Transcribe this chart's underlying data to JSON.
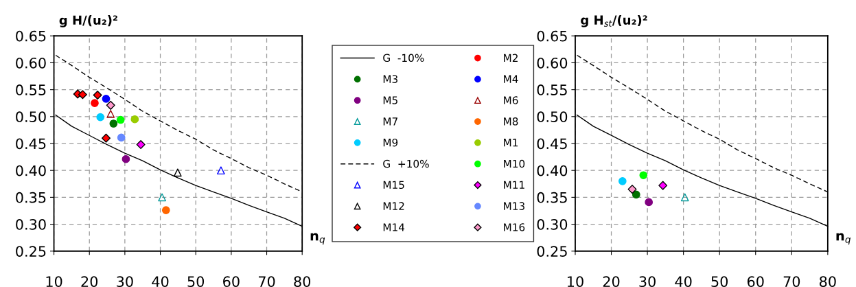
{
  "chart_data": [
    {
      "type": "scatter",
      "ylabel": "g H/(u₂)²",
      "xlabel": "n$_{q}$",
      "xlim": [
        10,
        80
      ],
      "ylim": [
        0.25,
        0.65
      ],
      "xticks": [
        10,
        20,
        30,
        40,
        50,
        60,
        70,
        80
      ],
      "yticks": [
        {
          "value": 0.25,
          "label": "0.25"
        },
        {
          "value": 0.3,
          "label": "0.30"
        },
        {
          "value": 0.35,
          "label": "0.35"
        },
        {
          "value": 0.4,
          "label": "0.40"
        },
        {
          "value": 0.45,
          "label": "0.45"
        },
        {
          "value": 0.5,
          "label": "0.50"
        },
        {
          "value": 0.55,
          "label": "0.55"
        },
        {
          "value": 0.6,
          "label": "0.60"
        },
        {
          "value": 0.65,
          "label": "0.65"
        }
      ],
      "grid": true,
      "legend": "right",
      "series": [
        {
          "name": "G  -10%",
          "type": "line",
          "line_style": "solid",
          "marker": "none",
          "color": "#000000",
          "x": [
            10.5,
            15,
            20,
            25,
            30,
            35,
            40,
            45,
            50,
            55,
            60,
            65,
            70,
            75,
            80
          ],
          "values": [
            0.503,
            0.482,
            0.465,
            0.448,
            0.432,
            0.418,
            0.401,
            0.386,
            0.372,
            0.36,
            0.348,
            0.335,
            0.323,
            0.311,
            0.296
          ]
        },
        {
          "name": "M3",
          "marker": "circle",
          "color": "#007000",
          "x": [
            26.8
          ],
          "values": [
            0.487
          ]
        },
        {
          "name": "M5",
          "marker": "circle",
          "color": "#800080",
          "x": [
            30.3
          ],
          "values": [
            0.421
          ]
        },
        {
          "name": "M7",
          "marker": "triangle",
          "color": "#009999",
          "x": [
            40.5
          ],
          "values": [
            0.35
          ]
        },
        {
          "name": "M9",
          "marker": "circle",
          "color": "#00ccff",
          "x": [
            23.1
          ],
          "values": [
            0.499
          ]
        },
        {
          "name": "G  +10%",
          "type": "line",
          "line_style": "dashed",
          "marker": "none",
          "color": "#000000",
          "x": [
            10.5,
            15,
            20,
            25,
            30,
            35,
            40,
            45,
            50,
            55,
            60,
            65,
            70,
            75,
            80
          ],
          "values": [
            0.614,
            0.595,
            0.573,
            0.553,
            0.532,
            0.51,
            0.492,
            0.474,
            0.458,
            0.438,
            0.422,
            0.405,
            0.391,
            0.375,
            0.36
          ]
        },
        {
          "name": "M15",
          "marker": "triangle",
          "color": "#0000ff",
          "x": [
            57.1
          ],
          "values": [
            0.4
          ]
        },
        {
          "name": "M12",
          "marker": "triangle",
          "color": "#000000",
          "x": [
            44.9
          ],
          "values": [
            0.396
          ]
        },
        {
          "name": "M14",
          "marker": "diamond",
          "color": "#ff0000",
          "x": [
            16.7,
            18.1,
            22.3,
            24.7
          ],
          "values": [
            0.542,
            0.541,
            0.54,
            0.46
          ]
        },
        {
          "name": "M2",
          "marker": "circle",
          "color": "#ff0000",
          "x": [
            21.5
          ],
          "values": [
            0.525
          ]
        },
        {
          "name": "M4",
          "marker": "circle",
          "color": "#0000ff",
          "x": [
            24.7
          ],
          "values": [
            0.533
          ]
        },
        {
          "name": "M6",
          "marker": "triangle",
          "color": "#990000",
          "x": [
            26.0
          ],
          "values": [
            0.505
          ]
        },
        {
          "name": "M8",
          "marker": "circle",
          "color": "#ff6600",
          "x": [
            41.6
          ],
          "values": [
            0.326
          ]
        },
        {
          "name": "M1",
          "marker": "circle",
          "color": "#99cc00",
          "x": [
            32.8
          ],
          "values": [
            0.495
          ]
        },
        {
          "name": "M10",
          "marker": "circle",
          "color": "#00ff00",
          "x": [
            28.8
          ],
          "values": [
            0.494
          ]
        },
        {
          "name": "M11",
          "marker": "diamond",
          "color": "#ff00ff",
          "x": [
            34.5
          ],
          "values": [
            0.448
          ]
        },
        {
          "name": "M13",
          "marker": "circle",
          "color": "#6688ff",
          "x": [
            29.0
          ],
          "values": [
            0.461
          ]
        },
        {
          "name": "M16",
          "marker": "diamond",
          "color": "#ff99cc",
          "x": [
            26.0
          ],
          "values": [
            0.521
          ]
        }
      ]
    },
    {
      "type": "scatter",
      "ylabel": "g H$_{st}$/(u₂)²",
      "xlabel": "n$_{q}$",
      "xlim": [
        10,
        80
      ],
      "ylim": [
        0.25,
        0.65
      ],
      "xticks": [
        10,
        20,
        30,
        40,
        50,
        60,
        70,
        80
      ],
      "yticks": [
        {
          "value": 0.25,
          "label": "0.25"
        },
        {
          "value": 0.3,
          "label": "0.30"
        },
        {
          "value": 0.35,
          "label": "0.35"
        },
        {
          "value": 0.4,
          "label": "0.40"
        },
        {
          "value": 0.45,
          "label": "0.45"
        },
        {
          "value": 0.5,
          "label": "0.50"
        },
        {
          "value": 0.55,
          "label": "0.55"
        },
        {
          "value": 0.6,
          "label": "0.60"
        },
        {
          "value": 0.65,
          "label": "0.65"
        }
      ],
      "grid": true,
      "series": [
        {
          "type": "line",
          "line_style": "solid",
          "marker": "none",
          "color": "#000000",
          "x": [
            10.5,
            15,
            20,
            25,
            30,
            35,
            40,
            45,
            50,
            55,
            60,
            65,
            70,
            75,
            80
          ],
          "values": [
            0.503,
            0.482,
            0.465,
            0.448,
            0.432,
            0.418,
            0.401,
            0.386,
            0.372,
            0.36,
            0.348,
            0.335,
            0.323,
            0.311,
            0.296
          ]
        },
        {
          "type": "line",
          "line_style": "dashed",
          "marker": "none",
          "color": "#000000",
          "x": [
            10.5,
            15,
            20,
            25,
            30,
            35,
            40,
            45,
            50,
            55,
            60,
            65,
            70,
            75,
            80
          ],
          "values": [
            0.614,
            0.595,
            0.573,
            0.553,
            0.532,
            0.51,
            0.492,
            0.474,
            0.458,
            0.438,
            0.422,
            0.405,
            0.391,
            0.375,
            0.36
          ]
        },
        {
          "marker": "circle",
          "color": "#007000",
          "x": [
            26.9
          ],
          "values": [
            0.355
          ]
        },
        {
          "marker": "circle",
          "color": "#800080",
          "x": [
            30.4
          ],
          "values": [
            0.341
          ]
        },
        {
          "marker": "triangle",
          "color": "#009999",
          "x": [
            40.4
          ],
          "values": [
            0.35
          ]
        },
        {
          "marker": "circle",
          "color": "#00ccff",
          "x": [
            23.1
          ],
          "values": [
            0.38
          ]
        },
        {
          "marker": "circle",
          "color": "#00ff00",
          "x": [
            28.9
          ],
          "values": [
            0.391
          ]
        },
        {
          "marker": "diamond",
          "color": "#ff00ff",
          "x": [
            34.3
          ],
          "values": [
            0.372
          ]
        },
        {
          "marker": "diamond",
          "color": "#ff99cc",
          "x": [
            25.8
          ],
          "values": [
            0.365
          ]
        }
      ]
    }
  ]
}
